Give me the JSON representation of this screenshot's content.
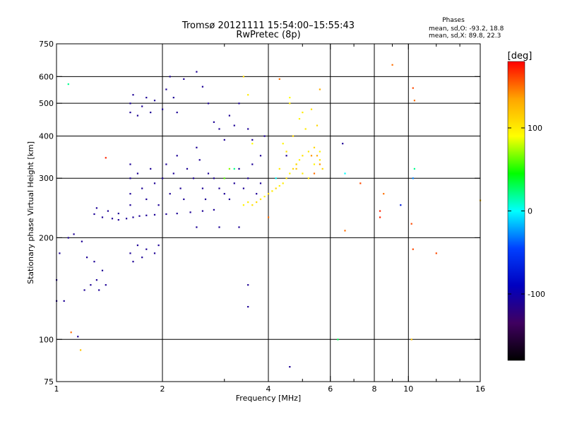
{
  "chart_data": {
    "type": "scatter",
    "title": "Tromsø 20121111 15:54:00–15:55:43",
    "subtitle": "RwPretec (8p)",
    "xlabel": "Frequency [MHz]",
    "ylabel": "Stationary phase Virtual Height [km]",
    "x_scale": "log",
    "y_scale": "log",
    "xlim": [
      1,
      16
    ],
    "ylim": [
      75,
      750
    ],
    "x_ticks": [
      1,
      2,
      4,
      6,
      8,
      10,
      16
    ],
    "x_gridlines": [
      2,
      4,
      6,
      8,
      10
    ],
    "x_minor_ticks": [
      3,
      5,
      7,
      9,
      12,
      14
    ],
    "y_ticks": [
      75,
      100,
      200,
      300,
      400,
      500,
      600,
      750
    ],
    "y_gridlines": [
      100,
      200,
      300,
      400,
      500,
      600
    ],
    "grid": true,
    "legend": {
      "title": "Phases",
      "lines": [
        "mean, sd,O: -93.2, 18.8",
        "mean, sd,X: 89.8, 22.3"
      ],
      "placement": "top-right"
    },
    "colorbar": {
      "label": "[deg]",
      "range": [
        -180,
        180
      ],
      "ticks": [
        100,
        0,
        -100
      ],
      "colors": [
        "#ff0000",
        "#ffa500",
        "#ffff00",
        "#00ff00",
        "#00ffff",
        "#0040ff",
        "#0000c0",
        "#400060",
        "#000000"
      ],
      "placement": "right"
    },
    "series": [
      {
        "points": [
          [
            1.02,
            180,
            -110
          ],
          [
            1.05,
            130,
            -110
          ],
          [
            1.08,
            200,
            -110
          ],
          [
            1.12,
            205,
            -110
          ],
          [
            1.28,
            235,
            -110
          ],
          [
            1.35,
            230,
            -110
          ],
          [
            1.44,
            228,
            -110
          ],
          [
            1.5,
            226,
            -110
          ],
          [
            1.58,
            228,
            -110
          ],
          [
            1.65,
            230,
            -110
          ],
          [
            1.72,
            232,
            -110
          ],
          [
            1.8,
            233,
            -110
          ],
          [
            1.9,
            234,
            -110
          ],
          [
            2.05,
            235,
            -110
          ],
          [
            2.2,
            236,
            -110
          ],
          [
            2.4,
            238,
            -110
          ],
          [
            2.6,
            240,
            -110
          ],
          [
            2.8,
            242,
            -110
          ],
          [
            1.3,
            245,
            -110
          ],
          [
            1.4,
            240,
            -110
          ],
          [
            1.5,
            236,
            -110
          ],
          [
            1.62,
            300,
            -110
          ],
          [
            1.62,
            330,
            -110
          ],
          [
            1.62,
            270,
            -110
          ],
          [
            1.62,
            250,
            -110
          ],
          [
            1.7,
            310,
            -110
          ],
          [
            1.75,
            280,
            -110
          ],
          [
            1.8,
            260,
            -110
          ],
          [
            1.85,
            320,
            -110
          ],
          [
            1.9,
            290,
            -110
          ],
          [
            1.95,
            250,
            -110
          ],
          [
            2.0,
            300,
            -110
          ],
          [
            2.05,
            330,
            -110
          ],
          [
            2.1,
            270,
            -110
          ],
          [
            2.15,
            310,
            -110
          ],
          [
            2.2,
            350,
            -110
          ],
          [
            2.25,
            280,
            -110
          ],
          [
            2.3,
            260,
            -110
          ],
          [
            2.35,
            320,
            -110
          ],
          [
            2.45,
            300,
            -110
          ],
          [
            2.5,
            370,
            -110
          ],
          [
            2.55,
            340,
            -110
          ],
          [
            2.6,
            280,
            -110
          ],
          [
            2.65,
            260,
            -110
          ],
          [
            2.7,
            310,
            -110
          ],
          [
            2.8,
            300,
            -110
          ],
          [
            2.9,
            280,
            -110
          ],
          [
            3.0,
            270,
            -110
          ],
          [
            3.1,
            260,
            -110
          ],
          [
            3.2,
            290,
            -110
          ],
          [
            3.3,
            320,
            -110
          ],
          [
            3.4,
            280,
            -110
          ],
          [
            3.5,
            300,
            -110
          ],
          [
            3.6,
            330,
            -110
          ],
          [
            3.7,
            270,
            -110
          ],
          [
            3.8,
            350,
            -110
          ],
          [
            3.9,
            400,
            -110
          ],
          [
            1.62,
            470,
            -110
          ],
          [
            1.62,
            500,
            -110
          ],
          [
            1.65,
            530,
            -110
          ],
          [
            1.7,
            460,
            -110
          ],
          [
            1.75,
            490,
            -110
          ],
          [
            1.8,
            520,
            -110
          ],
          [
            1.85,
            470,
            -110
          ],
          [
            1.9,
            510,
            -110
          ],
          [
            2.0,
            480,
            -110
          ],
          [
            2.05,
            550,
            -110
          ],
          [
            2.1,
            600,
            -110
          ],
          [
            2.15,
            520,
            -110
          ],
          [
            2.2,
            470,
            -110
          ],
          [
            2.3,
            590,
            -110
          ],
          [
            2.5,
            620,
            -110
          ],
          [
            2.6,
            560,
            -110
          ],
          [
            2.7,
            500,
            -110
          ],
          [
            2.8,
            440,
            -110
          ],
          [
            2.9,
            420,
            -110
          ],
          [
            3.0,
            390,
            -110
          ],
          [
            3.1,
            460,
            -110
          ],
          [
            3.2,
            430,
            -110
          ],
          [
            3.3,
            500,
            -110
          ],
          [
            3.5,
            420,
            -110
          ],
          [
            3.6,
            390,
            -110
          ],
          [
            1.62,
            180,
            -110
          ],
          [
            1.65,
            170,
            -110
          ],
          [
            1.7,
            190,
            -110
          ],
          [
            1.75,
            175,
            -110
          ],
          [
            1.8,
            185,
            -110
          ],
          [
            1.9,
            180,
            -110
          ],
          [
            1.95,
            190,
            -110
          ],
          [
            1.2,
            140,
            -110
          ],
          [
            1.25,
            145,
            -110
          ],
          [
            1.3,
            150,
            -110
          ],
          [
            1.32,
            140,
            -110
          ],
          [
            1.35,
            160,
            -110
          ],
          [
            1.38,
            145,
            -110
          ],
          [
            1.22,
            175,
            -110
          ],
          [
            1.28,
            170,
            -110
          ],
          [
            1.18,
            195,
            -110
          ],
          [
            1.15,
            102,
            -110
          ],
          [
            1.0,
            150,
            -110
          ],
          [
            1.0,
            130,
            -110
          ],
          [
            6.5,
            380,
            -110
          ],
          [
            3.5,
            145,
            -110
          ],
          [
            3.5,
            125,
            -110
          ],
          [
            4.6,
            83,
            -110
          ],
          [
            2.5,
            215,
            -110
          ],
          [
            2.9,
            215,
            -110
          ],
          [
            3.3,
            215,
            -110
          ],
          [
            4.5,
            350,
            -110
          ],
          [
            3.8,
            290,
            -110
          ],
          [
            3.4,
            250,
            95
          ],
          [
            3.5,
            255,
            100
          ],
          [
            3.6,
            250,
            105
          ],
          [
            3.7,
            255,
            110
          ],
          [
            3.8,
            260,
            100
          ],
          [
            3.9,
            265,
            95
          ],
          [
            4.0,
            270,
            105
          ],
          [
            4.1,
            275,
            100
          ],
          [
            4.2,
            280,
            110
          ],
          [
            4.3,
            285,
            95
          ],
          [
            4.4,
            290,
            100
          ],
          [
            4.5,
            300,
            105
          ],
          [
            4.6,
            310,
            95
          ],
          [
            4.7,
            320,
            110
          ],
          [
            4.8,
            330,
            100
          ],
          [
            4.9,
            340,
            95
          ],
          [
            5.0,
            350,
            105
          ],
          [
            5.2,
            360,
            100
          ],
          [
            5.4,
            370,
            110
          ],
          [
            5.6,
            360,
            95
          ],
          [
            4.3,
            320,
            100
          ],
          [
            4.5,
            360,
            105
          ],
          [
            4.7,
            400,
            110
          ],
          [
            4.9,
            450,
            95
          ],
          [
            5.1,
            420,
            100
          ],
          [
            5.3,
            480,
            105
          ],
          [
            5.5,
            430,
            110
          ],
          [
            4.4,
            380,
            95
          ],
          [
            4.6,
            500,
            100
          ],
          [
            4.8,
            330,
            110
          ],
          [
            5.0,
            310,
            100
          ],
          [
            5.2,
            300,
            105
          ],
          [
            5.4,
            330,
            95
          ],
          [
            5.6,
            340,
            100
          ],
          [
            5.7,
            320,
            110
          ],
          [
            5.5,
            350,
            130
          ],
          [
            5.6,
            330,
            140
          ],
          [
            5.4,
            310,
            150
          ],
          [
            5.3,
            350,
            140
          ],
          [
            3.2,
            320,
            20
          ],
          [
            3.0,
            300,
            60
          ],
          [
            3.4,
            600,
            110
          ],
          [
            4.2,
            300,
            0
          ],
          [
            4.0,
            230,
            150
          ],
          [
            4.8,
            320,
            120
          ],
          [
            4.6,
            520,
            90
          ],
          [
            3.5,
            530,
            100
          ],
          [
            3.1,
            320,
            70
          ],
          [
            3.6,
            380,
            90
          ],
          [
            5.0,
            470,
            100
          ],
          [
            1.08,
            570,
            20
          ],
          [
            10.4,
            320,
            20
          ],
          [
            10.3,
            300,
            -30
          ],
          [
            10.3,
            555,
            160
          ],
          [
            10.4,
            510,
            150
          ],
          [
            10.2,
            220,
            160
          ],
          [
            10.3,
            185,
            160
          ],
          [
            12.0,
            180,
            160
          ],
          [
            9.0,
            650,
            150
          ],
          [
            8.5,
            270,
            150
          ],
          [
            8.3,
            240,
            170
          ],
          [
            8.3,
            230,
            170
          ],
          [
            7.3,
            290,
            160
          ],
          [
            6.6,
            310,
            0
          ],
          [
            10.2,
            100,
            120
          ],
          [
            9.5,
            250,
            -70
          ],
          [
            16.0,
            258,
            120
          ],
          [
            4.3,
            590,
            150
          ],
          [
            5.6,
            550,
            130
          ],
          [
            6.6,
            210,
            150
          ],
          [
            6.3,
            100,
            30
          ],
          [
            1.1,
            105,
            150
          ],
          [
            1.17,
            93,
            120
          ],
          [
            1.38,
            345,
            170
          ]
        ]
      }
    ]
  }
}
